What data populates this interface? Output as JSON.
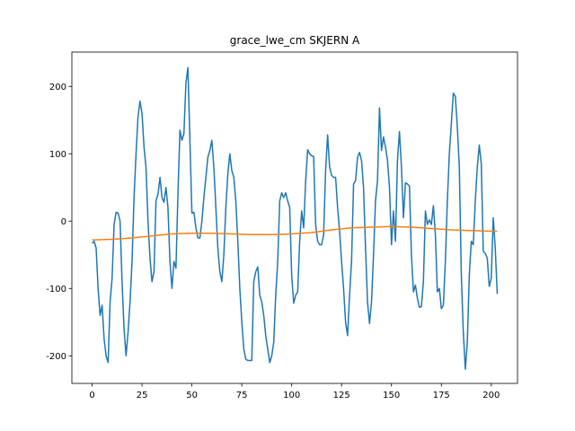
{
  "chart_data": {
    "type": "line",
    "title": "grace_lwe_cm SKJERN A",
    "xlim": [
      -10.15,
      213.15
    ],
    "ylim": [
      -241,
      251
    ],
    "xticks": [
      0,
      25,
      50,
      75,
      100,
      125,
      150,
      175,
      200
    ],
    "yticks": [
      -200,
      -100,
      0,
      100,
      200
    ],
    "series": [
      {
        "color": "#1f77b4",
        "x": [
          0,
          1,
          2,
          3,
          4,
          5,
          6,
          7,
          8,
          9,
          10,
          11,
          12,
          13,
          14,
          15,
          16,
          17,
          18,
          19,
          20,
          21,
          22,
          23,
          24,
          25,
          26,
          27,
          28,
          29,
          30,
          31,
          32,
          33,
          34,
          35,
          36,
          37,
          38,
          39,
          40,
          41,
          42,
          43,
          44,
          45,
          46,
          47,
          48,
          49,
          50,
          51,
          52,
          53,
          54,
          55,
          56,
          57,
          58,
          59,
          60,
          61,
          62,
          63,
          64,
          65,
          66,
          67,
          68,
          69,
          70,
          71,
          72,
          73,
          74,
          75,
          76,
          77,
          78,
          79,
          80,
          81,
          82,
          83,
          84,
          85,
          86,
          87,
          88,
          89,
          90,
          91,
          92,
          93,
          94,
          95,
          96,
          97,
          98,
          99,
          100,
          101,
          102,
          103,
          104,
          105,
          106,
          107,
          108,
          109,
          110,
          111,
          112,
          113,
          114,
          115,
          116,
          117,
          118,
          119,
          120,
          121,
          122,
          123,
          124,
          125,
          126,
          127,
          128,
          129,
          130,
          131,
          132,
          133,
          134,
          135,
          136,
          137,
          138,
          139,
          140,
          141,
          142,
          143,
          144,
          145,
          146,
          147,
          148,
          149,
          150,
          151,
          152,
          153,
          154,
          155,
          156,
          157,
          158,
          159,
          160,
          161,
          162,
          163,
          164,
          165,
          166,
          167,
          168,
          169,
          170,
          171,
          172,
          173,
          174,
          175,
          176,
          177,
          178,
          179,
          180,
          181,
          182,
          183,
          184,
          185,
          186,
          187,
          188,
          189,
          190,
          191,
          192,
          193,
          194,
          195,
          196,
          197,
          198,
          199,
          200,
          201,
          202,
          203
        ],
        "values": [
          -33,
          -30,
          -40,
          -100,
          -140,
          -125,
          -175,
          -200,
          -210,
          -120,
          -85,
          -5,
          13,
          12,
          0,
          -90,
          -160,
          -200,
          -165,
          -120,
          -60,
          35,
          100,
          155,
          178,
          160,
          110,
          80,
          0,
          -55,
          -90,
          -75,
          30,
          40,
          65,
          35,
          28,
          50,
          20,
          -60,
          -100,
          -60,
          -70,
          40,
          135,
          120,
          130,
          205,
          228,
          120,
          12,
          13,
          -10,
          -25,
          -25,
          0,
          35,
          65,
          95,
          105,
          120,
          80,
          20,
          -40,
          -75,
          -90,
          -50,
          20,
          70,
          100,
          75,
          65,
          30,
          -30,
          -100,
          -150,
          -190,
          -205,
          -207,
          -207,
          -207,
          -90,
          -75,
          -68,
          -110,
          -120,
          -140,
          -170,
          -190,
          -210,
          -200,
          -180,
          -110,
          -60,
          30,
          42,
          35,
          42,
          30,
          20,
          -80,
          -122,
          -110,
          -105,
          -30,
          15,
          -10,
          60,
          106,
          100,
          97,
          96,
          -5,
          -30,
          -35,
          -35,
          -20,
          75,
          128,
          80,
          68,
          65,
          65,
          20,
          -15,
          -60,
          -100,
          -150,
          -170,
          -110,
          -60,
          55,
          60,
          95,
          102,
          90,
          50,
          -40,
          -120,
          -152,
          -120,
          -50,
          30,
          60,
          168,
          105,
          125,
          110,
          90,
          50,
          -35,
          15,
          -30,
          90,
          133,
          80,
          5,
          57,
          55,
          52,
          -50,
          -105,
          -95,
          -115,
          -128,
          -127,
          -90,
          15,
          -5,
          2,
          -5,
          23,
          -20,
          -105,
          -100,
          -130,
          -125,
          -60,
          30,
          100,
          145,
          190,
          185,
          140,
          80,
          -80,
          -165,
          -220,
          -180,
          -80,
          -30,
          -35,
          30,
          80,
          113,
          85,
          -45,
          -48,
          -55,
          -97,
          -85,
          5,
          -40,
          -108
        ]
      },
      {
        "color": "#ff7f0e",
        "x": [
          0,
          10,
          20,
          30,
          40,
          50,
          60,
          70,
          80,
          90,
          100,
          110,
          120,
          130,
          140,
          150,
          160,
          170,
          180,
          190,
          200,
          203
        ],
        "values": [
          -28,
          -27,
          -25,
          -22,
          -19,
          -18,
          -18,
          -19,
          -20,
          -20,
          -19,
          -17,
          -13,
          -10,
          -9,
          -8,
          -9,
          -11,
          -13,
          -14,
          -15,
          -15
        ]
      }
    ]
  }
}
